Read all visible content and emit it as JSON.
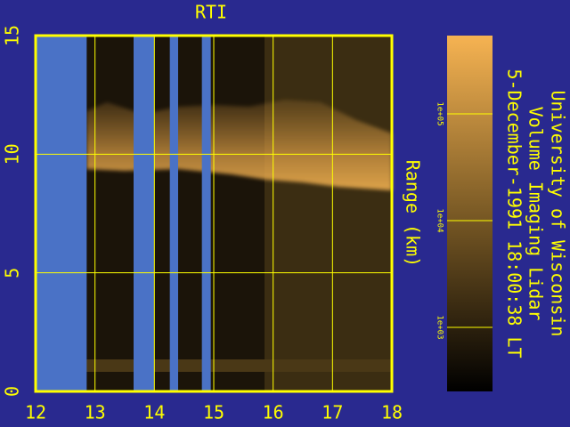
{
  "chart_data": {
    "type": "heatmap",
    "title": "RTI",
    "ylabel": "Range (km)",
    "xlim": [
      12,
      18
    ],
    "xticks": [
      12,
      13,
      14,
      15,
      16,
      17,
      18
    ],
    "ylim": [
      0,
      15
    ],
    "yticks": [
      0,
      5,
      10,
      15
    ],
    "grid": true,
    "gaps": [
      [
        12,
        12.86
      ],
      [
        13.65,
        14.0
      ],
      [
        14.26,
        14.4
      ],
      [
        14.8,
        14.95
      ]
    ],
    "colorbar": {
      "log_scale": true,
      "lim": [
        251,
        541000
      ],
      "ticks": [
        {
          "value": 100000,
          "label": "1e+05"
        },
        {
          "value": 10000,
          "label": "1e+04"
        },
        {
          "value": 1000,
          "label": "1e+03"
        }
      ]
    },
    "annotations": [
      "University of Wisconsin",
      "Volume Imaging Lidar",
      "5-December-1991 18:00:38 LT"
    ]
  }
}
